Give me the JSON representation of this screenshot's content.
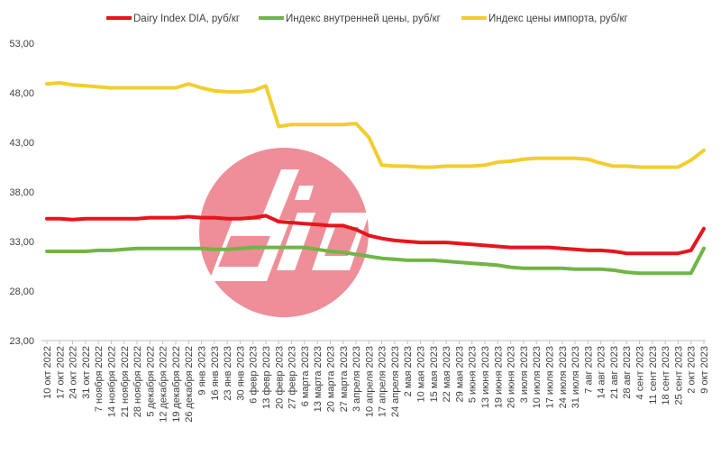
{
  "chart_data": {
    "type": "line",
    "title": "",
    "xlabel": "",
    "ylabel": "",
    "ylim": [
      23,
      53
    ],
    "yticks": [
      "23,00",
      "28,00",
      "33,00",
      "38,00",
      "43,00",
      "48,00",
      "53,00"
    ],
    "grid": false,
    "legend_position": "top",
    "x": [
      "10 окт 2022",
      "17 окт 2022",
      "24 окт 2022",
      "31 окт 2022",
      "7 ноября 2022",
      "14 ноября 2022",
      "21 ноября 2022",
      "28 ноября 2022",
      "5 декабря 2022",
      "12 декабря 2022",
      "19 декабря 2022",
      "26 декабря 2022",
      "9 янв 2023",
      "16 янв 2023",
      "23 янв 2023",
      "30 янв 2023",
      "6 февр 2023",
      "13 февр 2023",
      "20 февр 2023",
      "27 февр 2023",
      "6 марта 2023",
      "13 марта 2023",
      "20 марта 2023",
      "27 марта 2023",
      "3 апреля 2023",
      "10 апреля 2023",
      "17 апреля 2023",
      "24 апреля 2023",
      "2 мая 2023",
      "10 мая 2023",
      "15 мая 2023",
      "22 мая 2023",
      "29 мая 2023",
      "5 июня 2023",
      "13 июня 2023",
      "19 июня 2023",
      "26 июня 2023",
      "3 июля 2023",
      "10 июля 2023",
      "17 июля 2023",
      "24 июля 2023",
      "31 июля 2023",
      "7 авг 2023",
      "14 авг 2023",
      "21 авг 2023",
      "28 авг 2023",
      "4 сент 2023",
      "11 сент 2023",
      "18 сент 2023",
      "25 сент 2023",
      "2 окт 2023",
      "9 окт 2023"
    ],
    "series": [
      {
        "name": "Dairy Index DIA,  руб/кг",
        "color": "#e8141b",
        "values": [
          35.3,
          35.3,
          35.2,
          35.3,
          35.3,
          35.3,
          35.3,
          35.3,
          35.4,
          35.4,
          35.4,
          35.5,
          35.4,
          35.4,
          35.3,
          35.3,
          35.4,
          35.6,
          35.0,
          34.9,
          34.8,
          34.7,
          34.6,
          34.6,
          34.2,
          33.6,
          33.3,
          33.1,
          33.0,
          32.9,
          32.9,
          32.9,
          32.8,
          32.7,
          32.6,
          32.5,
          32.4,
          32.4,
          32.4,
          32.4,
          32.3,
          32.2,
          32.1,
          32.1,
          32.0,
          31.8,
          31.8,
          31.8,
          31.8,
          31.8,
          32.1,
          34.3
        ]
      },
      {
        "name": "Индекс внутренней цены, руб/кг",
        "color": "#70b545",
        "values": [
          32.0,
          32.0,
          32.0,
          32.0,
          32.1,
          32.1,
          32.2,
          32.3,
          32.3,
          32.3,
          32.3,
          32.3,
          32.3,
          32.2,
          32.2,
          32.3,
          32.4,
          32.4,
          32.4,
          32.4,
          32.4,
          32.2,
          32.0,
          31.9,
          31.7,
          31.5,
          31.3,
          31.2,
          31.1,
          31.1,
          31.1,
          31.0,
          30.9,
          30.8,
          30.7,
          30.6,
          30.4,
          30.3,
          30.3,
          30.3,
          30.3,
          30.2,
          30.2,
          30.2,
          30.1,
          29.9,
          29.8,
          29.8,
          29.8,
          29.8,
          29.8,
          32.3
        ]
      },
      {
        "name": "Индекс цены импорта, руб/кг",
        "color": "#f2cd2e",
        "values": [
          48.9,
          49.0,
          48.8,
          48.7,
          48.6,
          48.5,
          48.5,
          48.5,
          48.5,
          48.5,
          48.5,
          48.9,
          48.5,
          48.2,
          48.1,
          48.1,
          48.2,
          48.7,
          44.6,
          44.8,
          44.8,
          44.8,
          44.8,
          44.8,
          44.9,
          43.5,
          40.7,
          40.6,
          40.6,
          40.5,
          40.5,
          40.6,
          40.6,
          40.6,
          40.7,
          41.0,
          41.1,
          41.3,
          41.4,
          41.4,
          41.4,
          41.4,
          41.3,
          40.9,
          40.6,
          40.6,
          40.5,
          40.5,
          40.5,
          40.5,
          41.2,
          42.2
        ]
      }
    ]
  },
  "watermark": {
    "logo_text": "dia",
    "circle_color": "#ee8e98"
  }
}
